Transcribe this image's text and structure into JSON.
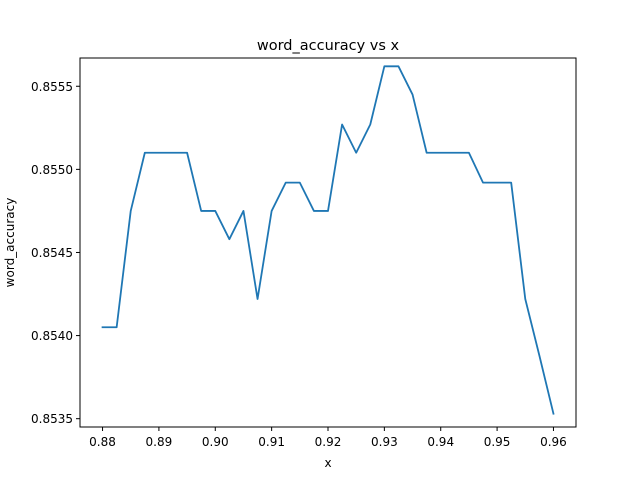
{
  "chart_data": {
    "type": "line",
    "title": "word_accuracy vs x",
    "xlabel": "x",
    "ylabel": "word_accuracy",
    "xlim": [
      0.876,
      0.964
    ],
    "ylim": [
      0.85345,
      0.85567
    ],
    "xticks": [
      0.88,
      0.89,
      0.9,
      0.91,
      0.92,
      0.93,
      0.94,
      0.95,
      0.96
    ],
    "xtick_labels": [
      "0.88",
      "0.89",
      "0.90",
      "0.91",
      "0.92",
      "0.93",
      "0.94",
      "0.95",
      "0.96"
    ],
    "yticks": [
      0.8535,
      0.854,
      0.8545,
      0.855,
      0.8555
    ],
    "ytick_labels": [
      "0.8535",
      "0.8540",
      "0.8545",
      "0.8550",
      "0.8555"
    ],
    "grid": false,
    "series": [
      {
        "color": "#1f77b4",
        "x": [
          0.88,
          0.8825,
          0.885,
          0.8875,
          0.89,
          0.8925,
          0.895,
          0.8975,
          0.9,
          0.9025,
          0.905,
          0.9075,
          0.91,
          0.9125,
          0.915,
          0.9175,
          0.92,
          0.9225,
          0.925,
          0.9275,
          0.93,
          0.9325,
          0.935,
          0.9375,
          0.94,
          0.9425,
          0.945,
          0.9475,
          0.95,
          0.9525,
          0.955,
          0.9575,
          0.96
        ],
        "y": [
          0.85405,
          0.85405,
          0.85475,
          0.8551,
          0.8551,
          0.8551,
          0.8551,
          0.85475,
          0.85475,
          0.85458,
          0.85475,
          0.85422,
          0.85475,
          0.85492,
          0.85492,
          0.85475,
          0.85475,
          0.85527,
          0.8551,
          0.85527,
          0.85562,
          0.85562,
          0.85545,
          0.8551,
          0.8551,
          0.8551,
          0.8551,
          0.85492,
          0.85492,
          0.85492,
          0.85422,
          0.85388,
          0.85353
        ]
      }
    ]
  }
}
